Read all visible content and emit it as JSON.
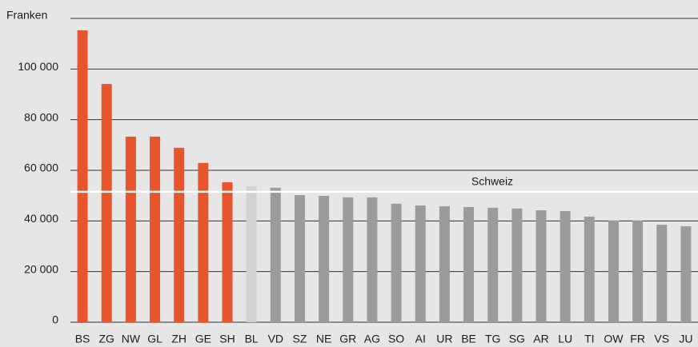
{
  "chart_data": {
    "type": "bar",
    "y_label": "Franken",
    "categories": [
      "BS",
      "ZG",
      "NW",
      "GL",
      "ZH",
      "GE",
      "SH",
      "BL",
      "VD",
      "SZ",
      "NE",
      "GR",
      "AG",
      "SO",
      "AI",
      "UR",
      "BE",
      "TG",
      "SG",
      "AR",
      "LU",
      "TI",
      "OW",
      "FR",
      "VS",
      "JU"
    ],
    "values": [
      115300,
      94100,
      73300,
      73300,
      68900,
      62900,
      55300,
      53700,
      53100,
      50200,
      49900,
      49300,
      49300,
      46800,
      46100,
      45800,
      45500,
      45200,
      44900,
      44200,
      43900,
      41700,
      40100,
      40100,
      38500,
      37900
    ],
    "colors": [
      "#e8542c",
      "#e8542c",
      "#e8542c",
      "#e8542c",
      "#e8542c",
      "#e8542c",
      "#e8542c",
      "#d2d2d2",
      "#9b9b9b",
      "#9b9b9b",
      "#9b9b9b",
      "#9b9b9b",
      "#9b9b9b",
      "#9b9b9b",
      "#9b9b9b",
      "#9b9b9b",
      "#9b9b9b",
      "#9b9b9b",
      "#9b9b9b",
      "#9b9b9b",
      "#9b9b9b",
      "#9b9b9b",
      "#9b9b9b",
      "#9b9b9b",
      "#9b9b9b",
      "#9b9b9b"
    ],
    "reference": {
      "label": "Schweiz",
      "value": 51500,
      "color": "#ffffff"
    },
    "ylim": [
      0,
      120000
    ],
    "yticks": [
      0,
      {
        "value": 20000,
        "label": "20 000"
      },
      {
        "value": 40000,
        "label": "40 000"
      },
      {
        "value": 60000,
        "label": "60 000"
      },
      {
        "value": 80000,
        "label": "80 000"
      },
      {
        "value": 100000,
        "label": "100 000"
      }
    ],
    "grid": true
  }
}
